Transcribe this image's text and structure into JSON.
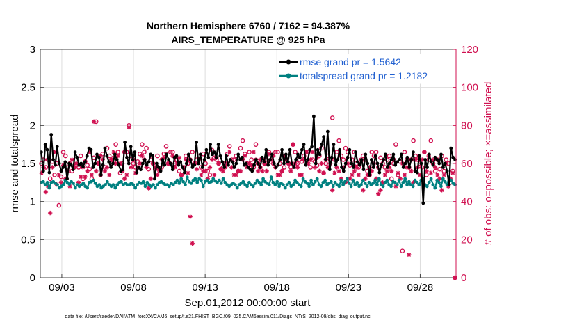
{
  "chart_data": {
    "type": "line",
    "title": [
      "Northern Hemisphere 6760 / 7162 = 94.387%",
      "AIRS_TEMPERATURE @ 925 hPa"
    ],
    "xlabel": "Sep.01,2012 00:00:00 start",
    "ylabel_left": "rmse and totalspread",
    "ylabel_right": "# of obs: o=possible; ×=assimilated",
    "ylim_left": [
      0,
      3
    ],
    "ylim_right": [
      0,
      120
    ],
    "xlim": [
      1.5,
      30.5
    ],
    "x_ticks": [
      3,
      8,
      13,
      18,
      23,
      28
    ],
    "x_tick_labels": [
      "09/03",
      "09/08",
      "09/13",
      "09/18",
      "09/23",
      "09/28"
    ],
    "y_ticks_left": [
      "0",
      "0.5",
      "1",
      "1.5",
      "2",
      "2.5",
      "3"
    ],
    "y_ticks_right": [
      "0",
      "20",
      "40",
      "60",
      "80",
      "100",
      "120"
    ],
    "footnote": "data file: /Users/raeder/DAI/ATM_forcXX/CAM6_setup/f.e21.FHIST_BGC.f09_025.CAM6assim.011/Diags_NTrS_2012-09/obs_diag_output.nc",
    "colors": {
      "rmse": "#000000",
      "spread": "#008080",
      "obs": "#d01050",
      "grid": "#dddddd"
    },
    "series": [
      {
        "name": "rmse grand pr = 1.5642",
        "color": "#000000",
        "values": [
          1.65,
          1.4,
          1.75,
          1.68,
          1.38,
          1.88,
          1.55,
          1.48,
          1.72,
          1.5,
          1.4,
          1.45,
          1.52,
          1.3,
          1.5,
          1.48,
          1.42,
          1.65,
          1.58,
          1.48,
          1.5,
          1.46,
          1.52,
          1.6,
          1.7,
          1.68,
          1.45,
          1.5,
          1.62,
          1.58,
          1.35,
          1.48,
          1.7,
          1.6,
          1.52,
          1.45,
          1.5,
          1.62,
          1.55,
          1.48,
          1.4,
          1.42,
          1.78,
          1.58,
          1.5,
          1.72,
          1.55,
          1.65,
          1.38,
          1.45,
          1.42,
          1.5,
          1.55,
          1.48,
          1.52,
          1.62,
          1.6,
          1.3,
          1.5,
          1.45,
          1.4,
          1.55,
          1.48,
          1.62,
          1.55,
          1.5,
          1.42,
          1.58,
          1.6,
          1.48,
          1.52,
          1.45,
          1.38,
          1.5,
          1.62,
          1.55,
          1.45,
          1.48,
          1.78,
          1.5,
          1.62,
          1.45,
          1.55,
          1.68,
          1.58,
          1.75,
          1.62,
          1.65,
          1.58,
          1.75,
          1.6,
          1.52,
          1.45,
          1.6,
          1.48,
          1.55,
          1.52,
          1.45,
          1.5,
          1.62,
          1.55,
          1.58,
          1.48,
          1.5,
          1.45,
          1.42,
          1.4,
          1.48,
          1.55,
          1.5,
          1.45,
          1.58,
          1.52,
          1.68,
          1.48,
          1.55,
          1.62,
          1.5,
          1.45,
          1.48,
          1.55,
          1.68,
          1.5,
          1.62,
          1.52,
          1.68,
          1.5,
          1.45,
          1.55,
          1.62,
          1.58,
          1.68,
          1.75,
          1.48,
          1.55,
          1.68,
          1.72,
          2.12,
          1.5,
          1.68,
          1.62,
          1.75,
          1.85,
          1.55,
          1.92,
          1.42,
          1.58,
          1.75,
          1.48,
          1.55,
          1.68,
          1.45,
          1.4,
          1.5,
          1.58,
          1.68,
          1.5,
          1.45,
          1.65,
          1.52,
          1.48,
          1.55,
          1.42,
          1.62,
          1.5,
          1.35,
          1.55,
          1.45,
          1.6,
          1.5,
          1.38,
          1.48,
          1.55,
          1.62,
          1.45,
          1.5,
          1.55,
          1.62,
          1.48,
          1.52,
          1.55,
          1.62,
          1.45,
          1.5,
          1.58,
          1.45,
          1.55,
          1.65,
          1.4,
          1.38,
          1.6,
          1.5,
          0.98,
          1.55,
          1.45,
          1.62,
          1.52,
          1.48,
          1.58,
          1.55,
          1.5,
          1.62,
          1.45,
          1.5,
          1.4,
          1.22,
          1.7,
          1.58,
          1.55
        ]
      },
      {
        "name": "totalspread grand pr = 1.2182",
        "color": "#008080",
        "values": [
          1.25,
          1.26,
          1.22,
          1.25,
          1.18,
          1.25,
          1.26,
          1.24,
          1.22,
          1.18,
          1.2,
          1.22,
          1.28,
          1.25,
          1.23,
          1.26,
          1.24,
          1.18,
          1.22,
          1.2,
          1.22,
          1.24,
          1.2,
          1.18,
          1.25,
          1.26,
          1.28,
          1.24,
          1.2,
          1.22,
          1.18,
          1.2,
          1.22,
          1.26,
          1.22,
          1.2,
          1.22,
          1.18,
          1.22,
          1.25,
          1.26,
          1.22,
          1.24,
          1.22,
          1.22,
          1.24,
          1.22,
          1.18,
          1.22,
          1.25,
          1.24,
          1.26,
          1.2,
          1.25,
          1.22,
          1.2,
          1.22,
          1.18,
          1.22,
          1.25,
          1.26,
          1.24,
          1.22,
          1.22,
          1.2,
          1.24,
          1.22,
          1.25,
          1.28,
          1.24,
          1.3,
          1.26,
          1.22,
          1.32,
          1.26,
          1.24,
          1.28,
          1.3,
          1.25,
          1.3,
          1.28,
          1.2,
          1.26,
          1.28,
          1.25,
          1.26,
          1.3,
          1.27,
          1.25,
          1.28,
          1.24,
          1.3,
          1.25,
          1.22,
          1.2,
          1.22,
          1.24,
          1.22,
          1.18,
          1.22,
          1.24,
          1.26,
          1.22,
          1.2,
          1.25,
          1.22,
          1.2,
          1.24,
          1.28,
          1.25,
          1.22,
          1.3,
          1.26,
          1.24,
          1.22,
          1.32,
          1.25,
          1.22,
          1.26,
          1.2,
          1.24,
          1.22,
          1.18,
          1.22,
          1.25,
          1.2,
          1.22,
          1.28,
          1.25,
          1.22,
          1.2,
          1.3,
          1.26,
          1.24,
          1.2,
          1.28,
          1.22,
          1.26,
          1.3,
          1.22,
          1.2,
          1.25,
          1.28,
          1.22,
          1.24,
          1.26,
          1.2,
          1.25,
          1.22,
          1.2,
          1.28,
          1.22,
          1.26,
          1.3,
          1.24,
          1.2,
          1.28,
          1.22,
          1.25,
          1.2,
          1.22,
          1.28,
          1.24,
          1.2,
          1.25,
          1.22,
          1.24,
          1.28,
          1.22,
          1.3,
          1.22,
          1.2,
          1.25,
          1.28,
          1.22,
          1.2,
          1.26,
          1.25,
          1.22,
          1.28,
          1.2,
          1.25,
          1.3,
          1.22,
          1.26,
          1.22,
          1.2,
          1.28,
          1.25,
          1.22,
          1.28,
          1.3,
          1.22,
          1.2,
          1.25,
          1.3,
          1.22,
          1.18,
          1.28,
          1.25,
          1.2,
          1.3,
          1.26,
          1.22,
          1.32,
          1.28,
          1.24,
          1.22
        ]
      }
    ],
    "obs_possible": [
      60,
      62,
      58,
      62,
      52,
      61,
      54,
      60,
      38,
      53,
      66,
      64,
      58,
      60,
      56,
      58,
      59,
      58,
      64,
      52,
      61,
      59,
      57,
      52,
      63,
      82,
      60,
      54,
      65,
      58,
      68,
      64,
      60,
      63,
      70,
      66,
      55,
      60,
      66,
      66,
      80,
      64,
      60,
      58,
      61,
      65,
      70,
      66,
      68,
      57,
      62,
      60,
      57,
      64,
      56,
      58,
      65,
      69,
      60,
      66,
      66,
      60,
      62,
      56,
      54,
      58,
      64,
      60,
      62,
      66,
      60,
      62,
      64,
      58,
      65,
      60,
      56,
      54,
      67,
      63,
      62,
      60,
      57,
      58,
      60,
      65,
      69,
      62,
      62,
      64,
      56,
      68,
      72,
      65,
      60,
      66,
      62,
      58,
      70,
      60,
      58,
      62,
      60,
      62,
      66,
      61,
      60,
      66,
      66,
      60,
      56,
      58,
      62,
      60,
      58,
      70,
      66,
      60,
      62,
      61,
      64,
      66,
      66,
      58,
      62,
      61,
      59,
      64,
      68,
      55,
      60,
      64,
      62,
      84,
      62,
      66,
      72,
      64,
      62,
      68,
      66,
      59,
      62,
      66,
      60,
      58,
      61,
      64,
      62,
      56,
      54,
      66,
      64,
      66,
      58,
      63,
      60,
      58,
      62,
      64,
      52,
      60,
      70,
      54,
      61,
      14,
      66,
      62,
      58,
      62,
      72,
      64,
      62,
      60,
      58,
      66,
      54,
      62,
      72,
      60,
      56,
      62,
      57,
      64,
      56,
      62,
      60,
      50,
      56,
      0
    ],
    "obs_assimilated": [
      55,
      58,
      45,
      48,
      34,
      58,
      66,
      49,
      54,
      50,
      59,
      52,
      56,
      48,
      62,
      58,
      60,
      50,
      53,
      58,
      53,
      56,
      66,
      54,
      82,
      56,
      60,
      64,
      62,
      56,
      58,
      54,
      62,
      66,
      60,
      64,
      60,
      56,
      52,
      54,
      79,
      58,
      62,
      55,
      58,
      60,
      64,
      62,
      58,
      47,
      52,
      60,
      58,
      54,
      57,
      62,
      63,
      65,
      60,
      60,
      64,
      58,
      60,
      63,
      54,
      58,
      62,
      55,
      32,
      18,
      60,
      57,
      62,
      54,
      56,
      56,
      52,
      58,
      62,
      54,
      63,
      60,
      57,
      56,
      58,
      60,
      66,
      58,
      54,
      54,
      56,
      56,
      62,
      64,
      58,
      60,
      59,
      66,
      62,
      56,
      62,
      56,
      60,
      56,
      65,
      62,
      64,
      58,
      54,
      54,
      56,
      64,
      62,
      60,
      56,
      70,
      60,
      58,
      54,
      54,
      62,
      66,
      60,
      62,
      66,
      58,
      63,
      56,
      60,
      55,
      62,
      58,
      60,
      46,
      55,
      58,
      56,
      52,
      58,
      50,
      60,
      52,
      54,
      56,
      58,
      54,
      62,
      46,
      52,
      54,
      58,
      56,
      60,
      52,
      44,
      46,
      50,
      54,
      56,
      58,
      56,
      62,
      48,
      55,
      52,
      60,
      54,
      58,
      12,
      56,
      50,
      62,
      58,
      54,
      62,
      66,
      56,
      64,
      55,
      62,
      58,
      54,
      52,
      46,
      54,
      60,
      48,
      52,
      55,
      0
    ]
  }
}
